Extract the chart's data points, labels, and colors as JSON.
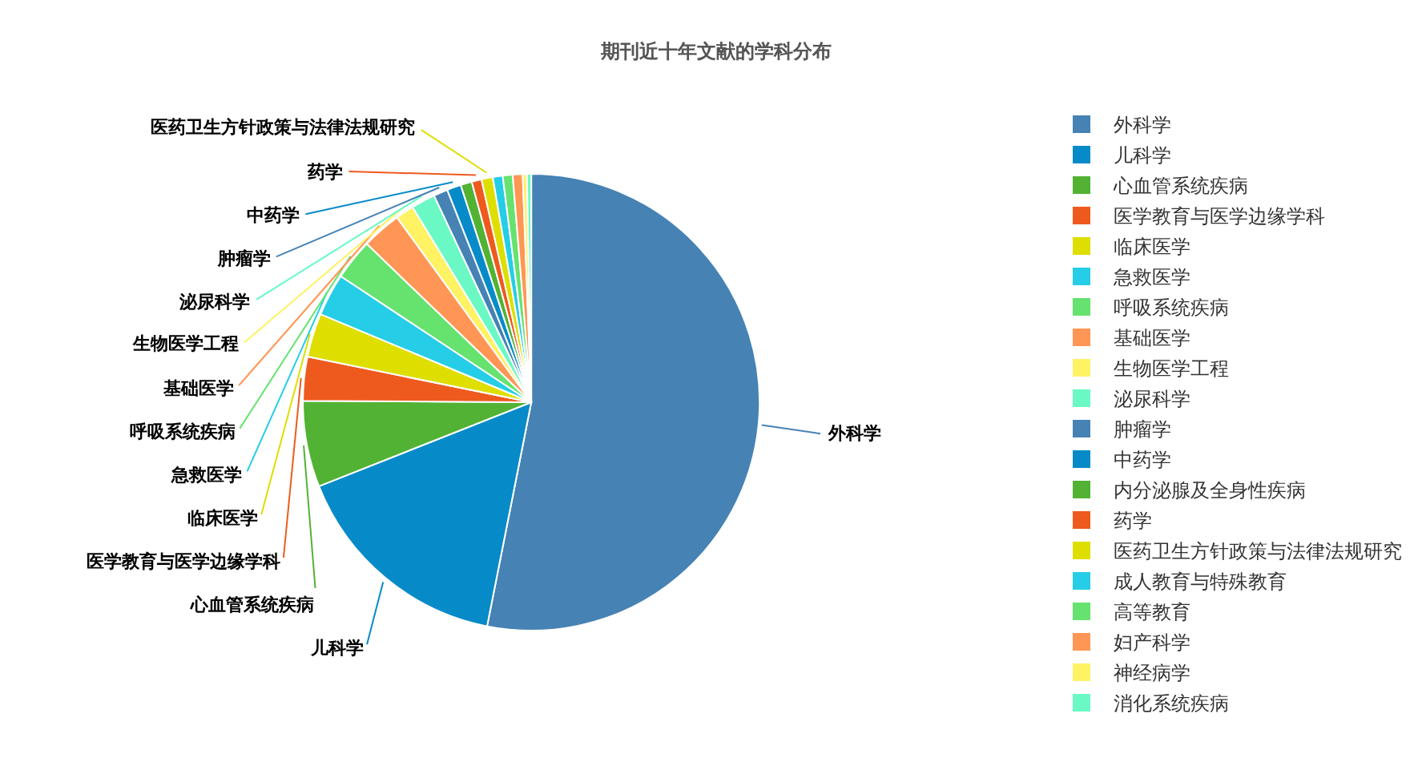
{
  "chart_data": {
    "type": "pie",
    "title": "期刊近十年文献的学科分布",
    "categories": [
      "外科学",
      "儿科学",
      "心血管系统疾病",
      "医学教育与医学边缘学科",
      "临床医学",
      "急救医学",
      "呼吸系统疾病",
      "基础医学",
      "生物医学工程",
      "泌尿科学",
      "肿瘤学",
      "中药学",
      "内分泌腺及全身性疾病",
      "药学",
      "医药卫生方针政策与法律法规研究",
      "成人教育与特殊教育",
      "高等教育",
      "妇产科学",
      "神经病学",
      "消化系统疾病"
    ],
    "values": [
      53.1,
      15.9,
      6.1,
      3.1,
      3.1,
      3.0,
      2.9,
      2.8,
      1.3,
      1.7,
      1.0,
      1.0,
      0.8,
      0.7,
      0.8,
      0.7,
      0.7,
      0.7,
      0.3,
      0.3
    ],
    "colors": [
      "#4682b4",
      "#078bc8",
      "#52b234",
      "#ee5a1e",
      "#dede00",
      "#26cde6",
      "#66e26f",
      "#ff9655",
      "#fff263",
      "#6af9c4",
      "#4682b4",
      "#078bc8",
      "#52b234",
      "#ee5a1e",
      "#dede00",
      "#26cde6",
      "#66e26f",
      "#ff9655",
      "#fff263",
      "#6af9c4"
    ],
    "value_labels": [
      "外科学",
      "儿科学",
      "心血管系统疾病",
      "医学教育与医学边缘学科",
      "临床医学",
      "急救医学",
      "呼吸系统疾病",
      "基础医学",
      "生物医学工程",
      "泌尿科学",
      "肿瘤学",
      "中药学",
      null,
      "药学",
      "医药卫生方针政策与法律法规研究",
      null,
      null,
      null,
      null,
      null
    ],
    "legend": "right"
  }
}
